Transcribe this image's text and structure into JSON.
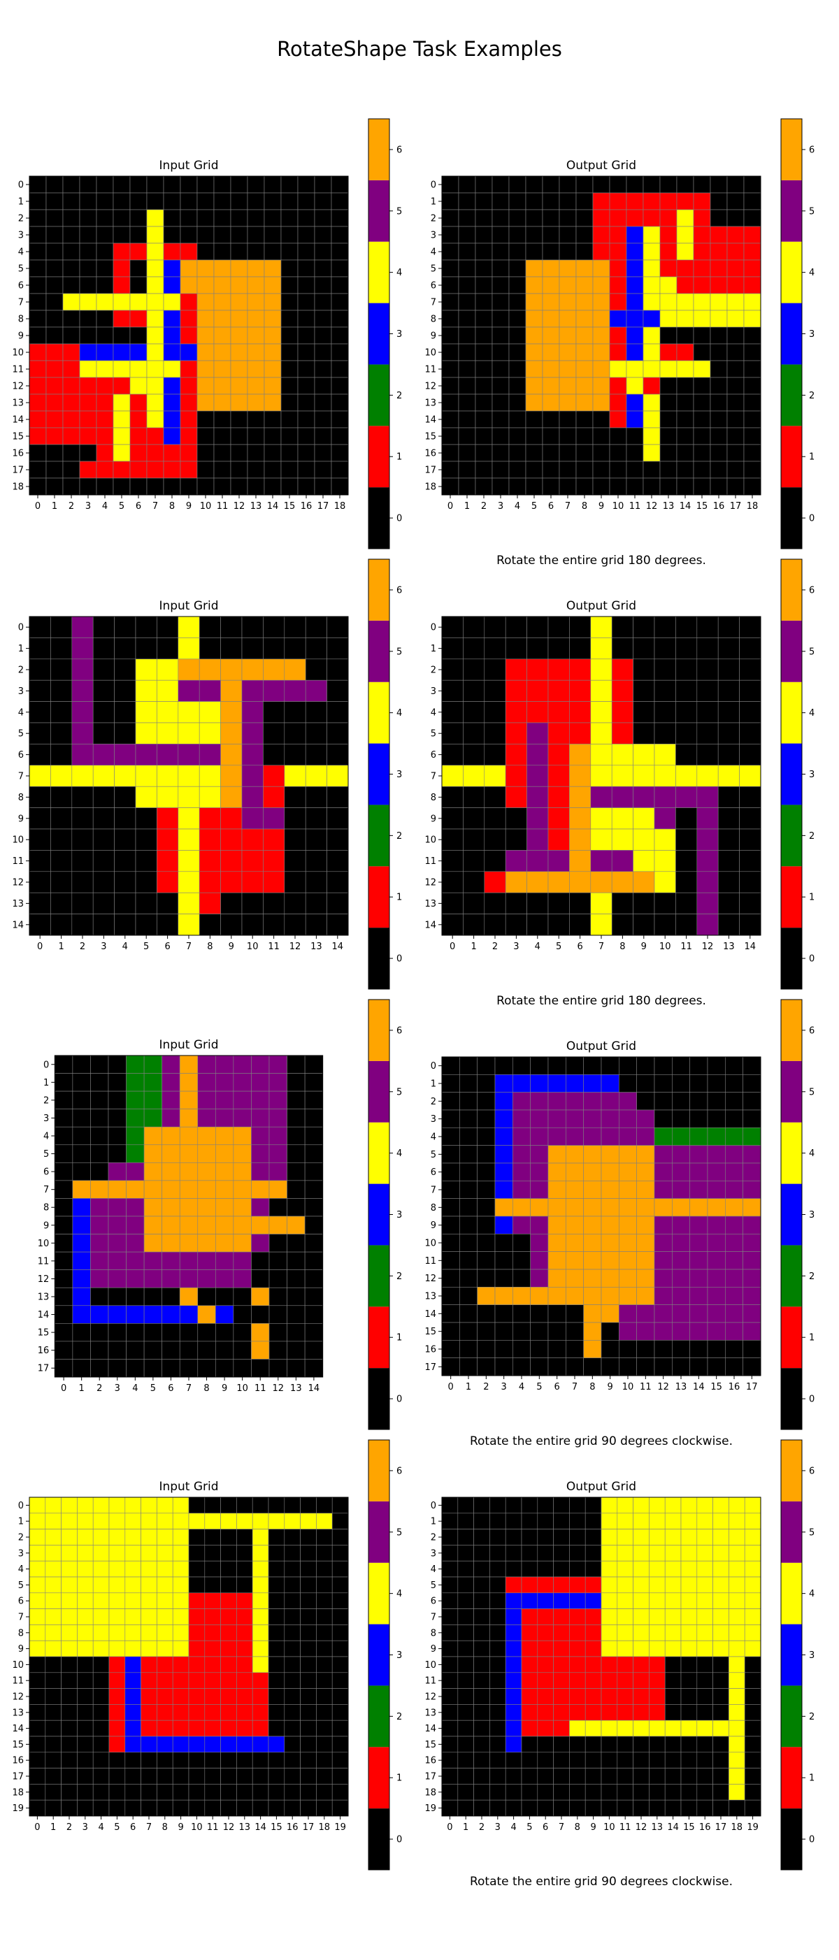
{
  "title": "RotateShape Task Examples",
  "palette": [
    "#000000",
    "#ff0000",
    "#008000",
    "#0000ff",
    "#ffff00",
    "#800080",
    "#ffa500"
  ],
  "colorbar_ticks": [
    0,
    1,
    2,
    3,
    4,
    5,
    6
  ],
  "input_label": "Input Grid",
  "output_label": "Output Grid",
  "examples": [
    {
      "caption": "Rotate the entire grid 180 degrees.",
      "input": [
        "0000000000000000000",
        "0000000000000000000",
        "0000000400000000000",
        "0000000400000000000",
        "0000011411000000000",
        "0000010436666660000",
        "0000010436666660000",
        "0044444441666660000",
        "0000011431666660000",
        "0000000431666660000",
        "1113333433666660000",
        "1114444441666660000",
        "1111114431666660000",
        "1111141431666660000",
        "1111141431000000000",
        "1111141131000000000",
        "0000141111000000000",
        "0001111111000000000",
        "0000000000000000000"
      ],
      "output": [
        "0000000000000000000",
        "0000000001111111000",
        "0000000001111141000",
        "0000000001134141111",
        "0000000001134141111",
        "0000066666134111111",
        "0000066666134411111",
        "0000066666134444444",
        "0000066666333444444",
        "0000066666134000000",
        "0000066666134110000",
        "0000066666444444000",
        "0000066666141000000",
        "0000066666134000000",
        "0000000000134000000",
        "0000000000004000000",
        "0000000000004000000",
        "0000000000000000000",
        "0000000000000000000"
      ]
    },
    {
      "caption": "Rotate the entire grid 180 degrees.",
      "input": [
        "005000040000000",
        "005000040000000",
        "005004466666600",
        "005004455655550",
        "005004444650000",
        "005004444650000",
        "005555555650000",
        "444444444651444",
        "000004444651000",
        "000000141155000",
        "000000141111000",
        "000000141111000",
        "000000141111000",
        "000000041000000",
        "000000040000000"
      ],
      "output": [
        "000000040000000",
        "000000040000000",
        "000111141000000",
        "000111141000000",
        "000111141000000",
        "000151141000000",
        "000151644440000",
        "444151644444444",
        "000151655555500",
        "000051644450500",
        "000051644440500",
        "000555655440500",
        "001666666640500",
        "000000040000500",
        "000000040000500"
      ]
    },
    {
      "caption": "Rotate the entire grid 90 degrees clockwise.",
      "input": [
        "000022565555500",
        "000022565555500",
        "000022565555500",
        "000022565555500",
        "000026666665500",
        "000026666665500",
        "000556666665500",
        "066666666666600",
        "035556666665000",
        "035556666666660",
        "035556666665000",
        "035555555550000",
        "035555555550000",
        "030000060006000",
        "033333336300000",
        "000000000006000",
        "000000000006000",
        "000000000000000"
      ],
      "output": [
        "000000000000000000",
        "000333333300000000",
        "000355555550000000",
        "000355555555000000",
        "000355555555222222",
        "000355666666555555",
        "000355666666555555",
        "000355666666555555",
        "000666666666666666",
        "000355666666555555",
        "000005666666555555",
        "000005666666555555",
        "000005666666555555",
        "006666666666555555",
        "000000006655555555",
        "000000006055555555",
        "000000006000000000",
        "000000000000000000"
      ]
    },
    {
      "caption": "Rotate the entire grid 90 degrees clockwise.",
      "input": [
        "44444444440000000000",
        "44444444444444444440",
        "44444444440000400000",
        "44444444440000400000",
        "44444444440000400000",
        "44444444440000400000",
        "44444444441111400000",
        "44444444441111400000",
        "44444444441111400000",
        "44444444441111400000",
        "00000131111111400000",
        "00000131111111100000",
        "00000131111111100000",
        "00000131111111100000",
        "00000131111111100000",
        "00000133333333330000",
        "00000000000000000000",
        "00000000000000000000",
        "00000000000000000000",
        "00000000000000000000"
      ],
      "output": [
        "00000000004444444444",
        "00000000004444444444",
        "00000000004444444444",
        "00000000004444444444",
        "00000000004444444444",
        "00001111114444444444",
        "00003333334444444444",
        "00003111114444444444",
        "00003111114444444444",
        "00003111114444444444",
        "00003111111111000040",
        "00003111111111000040",
        "00003111111111000040",
        "00003111111111000040",
        "00003111444444444440",
        "00003000000000000040",
        "00000000000000000040",
        "00000000000000000040",
        "00000000000000000040",
        "00000000000000000000"
      ]
    }
  ]
}
